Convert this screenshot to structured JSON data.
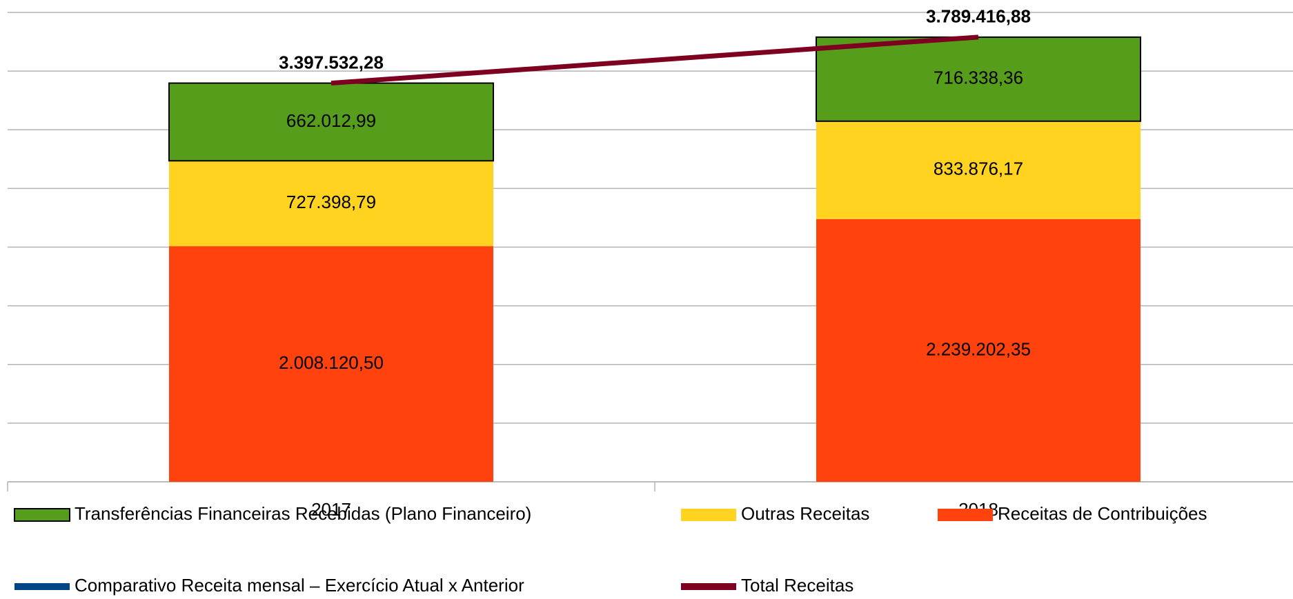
{
  "chart_data": {
    "type": "stacked-bar-line",
    "categories": [
      "2017",
      "2018"
    ],
    "series": [
      {
        "name": "Receitas de Contribuições",
        "type": "bar",
        "color": "#ff420e",
        "values": [
          2008120.5,
          2239202.35
        ],
        "value_labels": [
          "2.008.120,50",
          "2.239.202,35"
        ]
      },
      {
        "name": "Outras Receitas",
        "type": "bar",
        "color": "#ffd320",
        "values": [
          727398.79,
          833876.17
        ],
        "value_labels": [
          "727.398,79",
          "833.876,17"
        ]
      },
      {
        "name": "Transferências Financeiras Recebidas (Plano Financeiro)",
        "type": "bar",
        "color": "#579d1c",
        "border": "#000000",
        "values": [
          662012.99,
          716338.36
        ],
        "value_labels": [
          "662.012,99",
          "716.338,36"
        ]
      },
      {
        "name": "Comparativo Receita mensal – Exercício Atual x Anterior",
        "type": "line",
        "color": "#004586",
        "values": [
          null,
          null
        ]
      },
      {
        "name": "Total Receitas",
        "type": "line",
        "color": "#7e0021",
        "values": [
          3397532.28,
          3789416.88
        ],
        "value_labels": [
          "3.397.532,28",
          "3.789.416,88"
        ]
      }
    ],
    "ylim": [
      0,
      4000000
    ],
    "yticks": [
      0,
      500000,
      1000000,
      1500000,
      2000000,
      2500000,
      3000000,
      3500000,
      4000000
    ],
    "ytick_labels": false,
    "grid": true,
    "legend": "bottom"
  }
}
